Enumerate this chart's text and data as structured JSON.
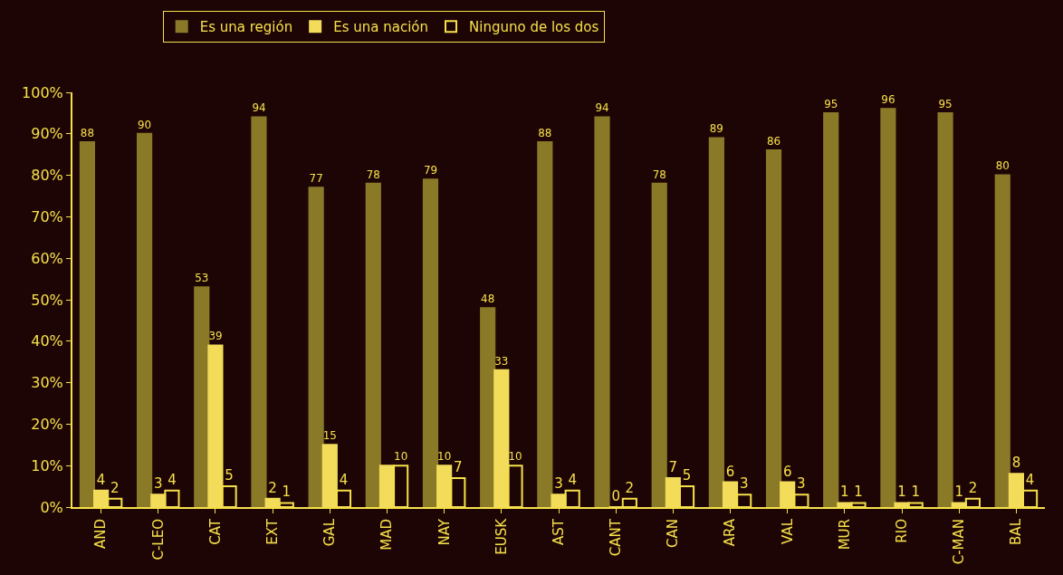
{
  "chart_data": {
    "type": "bar",
    "categories": [
      "AND",
      "C-LEO",
      "CAT",
      "EXT",
      "GAL",
      "MAD",
      "NAY",
      "EUSK",
      "AST",
      "CANT",
      "CAN",
      "ARA",
      "VAL",
      "MUR",
      "RIO",
      "C-MAN",
      "BAL"
    ],
    "series": [
      {
        "name": "Es una región",
        "color": "#8a7a28",
        "values": [
          88,
          90,
          53,
          94,
          77,
          78,
          79,
          48,
          88,
          94,
          78,
          89,
          86,
          95,
          96,
          95,
          80
        ],
        "value_labels": [
          "88",
          "90",
          "53",
          "94",
          "77",
          "78",
          "79",
          "48",
          "88",
          "94",
          "78",
          "89",
          "86",
          "95",
          "96",
          "95",
          "80"
        ]
      },
      {
        "name": "Es una nación",
        "color": "#f2dc5a",
        "values": [
          4,
          3,
          39,
          2,
          15,
          10,
          10,
          33,
          3,
          0,
          7,
          6,
          6,
          1,
          1,
          1,
          8
        ],
        "value_labels": [
          "4",
          "3",
          "39",
          "2",
          "15",
          null,
          "10",
          "33",
          "3",
          "0",
          "7",
          "6",
          "6",
          "1",
          "1",
          "1",
          "8"
        ]
      },
      {
        "name": "Ninguno de los dos",
        "color": "#f5e04a",
        "values": [
          2,
          4,
          5,
          1,
          4,
          10,
          7,
          10,
          4,
          2,
          5,
          3,
          3,
          1,
          1,
          2,
          4
        ],
        "value_labels": [
          "2",
          "4",
          "5",
          "1",
          "4",
          "10",
          "7",
          "10",
          "4",
          "2",
          "5",
          "3",
          "3",
          "1",
          "1",
          "2",
          "4"
        ]
      }
    ],
    "ylim": [
      0,
      100
    ],
    "yticks": [
      {
        "value": 0,
        "label": "0%"
      },
      {
        "value": 10,
        "label": "10%"
      },
      {
        "value": 20,
        "label": "20%"
      },
      {
        "value": 30,
        "label": "30%"
      },
      {
        "value": 40,
        "label": "40%"
      },
      {
        "value": 50,
        "label": "50%"
      },
      {
        "value": 60,
        "label": "60%"
      },
      {
        "value": 70,
        "label": "70%"
      },
      {
        "value": 80,
        "label": "80%"
      },
      {
        "value": 90,
        "label": "90%"
      },
      {
        "value": 100,
        "label": "100%"
      }
    ],
    "grid": false,
    "legend": "top"
  }
}
